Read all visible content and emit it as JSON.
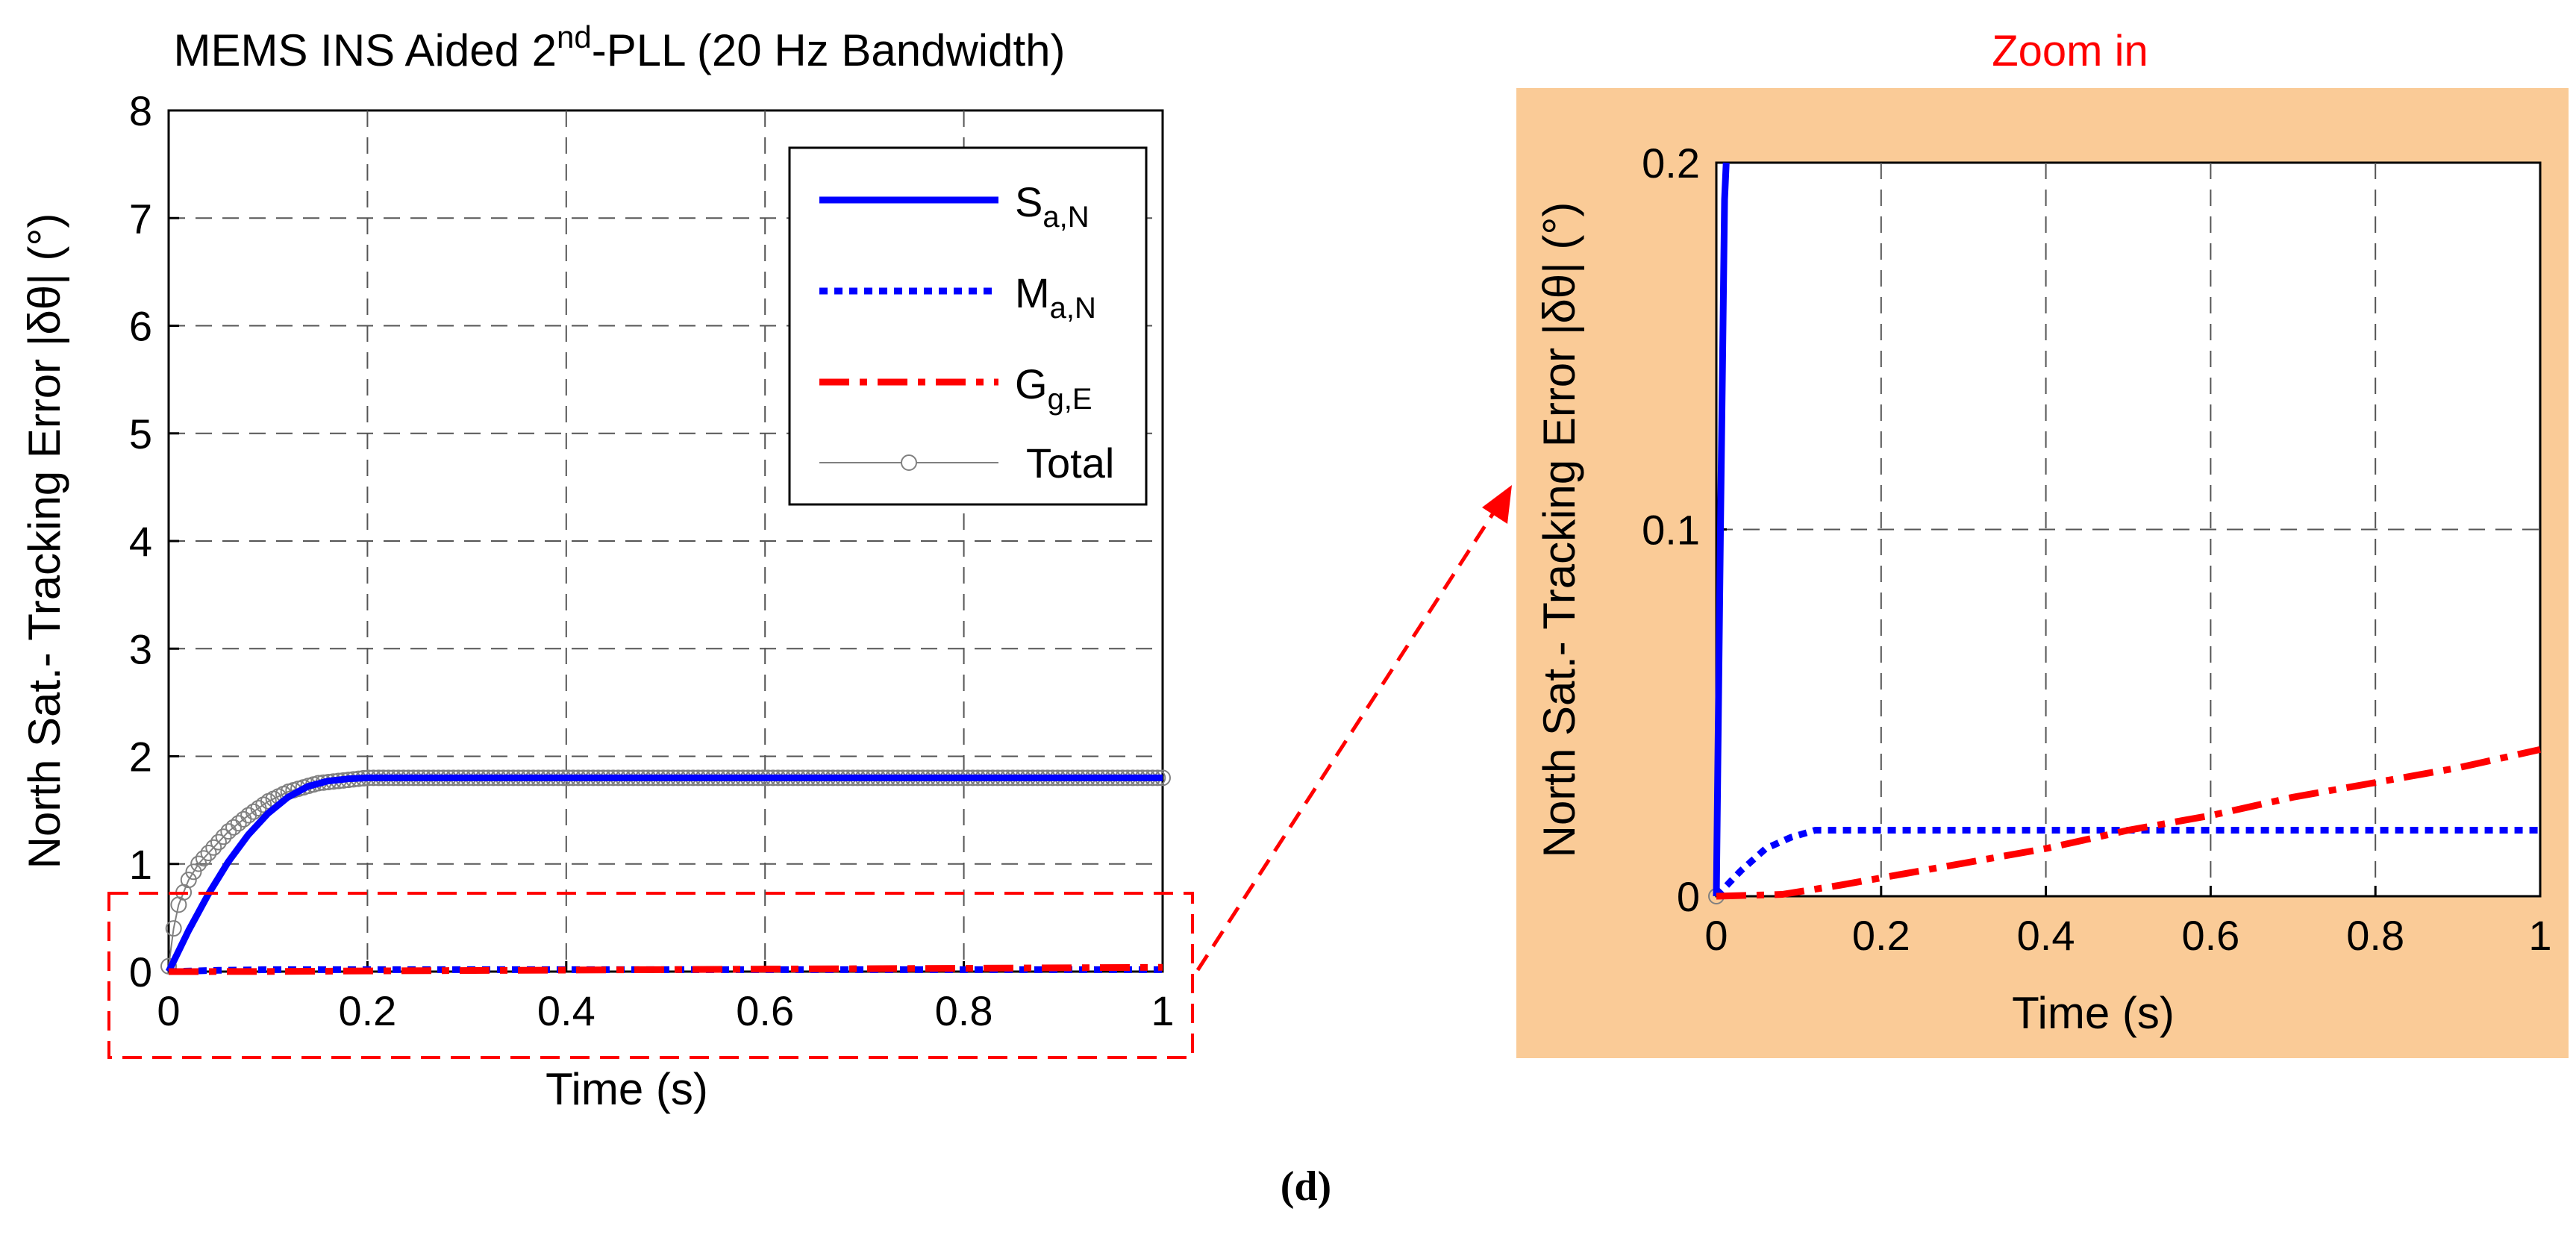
{
  "caption": "(d)",
  "zoom_label": "Zoom in",
  "colors": {
    "s_series": "#0000ff",
    "m_series": "#0000ff",
    "g_series": "#ff0000",
    "total_series": "#808080",
    "zoom_panel_bg": "#facb97",
    "highlight_box": "#ff0000"
  },
  "chart_data": [
    {
      "type": "line",
      "title": "MEMS INS Aided 2nd-PLL (20 Hz Bandwidth)",
      "title_parts": {
        "prefix": "MEMS INS Aided 2",
        "superscript": "nd",
        "suffix": "-PLL (20 Hz Bandwidth)"
      },
      "xlabel": "Time (s)",
      "ylabel": "North Sat.- Tracking Error |δθ| (°)",
      "xlim": [
        0,
        1
      ],
      "ylim": [
        0,
        8
      ],
      "xticks": [
        "0",
        "0.2",
        "0.4",
        "0.6",
        "0.8",
        "1"
      ],
      "yticks": [
        "0",
        "1",
        "2",
        "3",
        "4",
        "5",
        "6",
        "7",
        "8"
      ],
      "grid": true,
      "legend_position": "top-right",
      "series": [
        {
          "name": "S_a,N",
          "legend": {
            "main": "S",
            "sub": "a,N"
          },
          "style": "solid",
          "x": [
            0,
            0.02,
            0.04,
            0.06,
            0.08,
            0.1,
            0.12,
            0.14,
            0.16,
            0.18,
            0.2,
            1.0
          ],
          "y": [
            0,
            0.38,
            0.72,
            1.02,
            1.27,
            1.47,
            1.62,
            1.72,
            1.77,
            1.79,
            1.8,
            1.8
          ]
        },
        {
          "name": "M_a,N",
          "legend": {
            "main": "M",
            "sub": "a,N"
          },
          "style": "dotted",
          "x": [
            0,
            0.05,
            0.1,
            0.15,
            1.0
          ],
          "y": [
            0,
            0.012,
            0.018,
            0.018,
            0.018
          ]
        },
        {
          "name": "G_g,E",
          "legend": {
            "main": "G",
            "sub": "g,E"
          },
          "style": "dashdot",
          "x": [
            0,
            0.1,
            0.2,
            0.4,
            0.6,
            0.8,
            1.0
          ],
          "y": [
            0,
            0.001,
            0.006,
            0.014,
            0.023,
            0.031,
            0.04
          ]
        },
        {
          "name": "Total",
          "legend": {
            "main": "Total",
            "sub": ""
          },
          "style": "circles",
          "x": [
            0,
            0.005,
            0.01,
            0.02,
            0.03,
            0.04,
            0.06,
            0.08,
            0.1,
            0.12,
            0.15,
            0.2,
            1.0
          ],
          "y": [
            0.05,
            0.4,
            0.62,
            0.85,
            1.0,
            1.1,
            1.3,
            1.45,
            1.58,
            1.67,
            1.75,
            1.8,
            1.8
          ]
        }
      ]
    },
    {
      "type": "line",
      "title": "",
      "xlabel": "Time (s)",
      "ylabel": "North Sat.- Tracking Error |δθ| (°)",
      "xlim": [
        0,
        1
      ],
      "ylim": [
        0,
        0.2
      ],
      "xticks": [
        "0",
        "0.2",
        "0.4",
        "0.6",
        "0.8",
        "1"
      ],
      "yticks": [
        "0",
        "0.1",
        "0.2"
      ],
      "grid": true,
      "series": [
        {
          "name": "S_a,N",
          "style": "solid",
          "x": [
            0,
            0.005,
            0.01,
            0.012
          ],
          "y": [
            0,
            0.1,
            0.19,
            0.2
          ]
        },
        {
          "name": "M_a,N",
          "style": "dotted",
          "x": [
            0,
            0.03,
            0.06,
            0.09,
            0.12,
            0.2,
            1.0
          ],
          "y": [
            0,
            0.007,
            0.013,
            0.016,
            0.018,
            0.018,
            0.018
          ]
        },
        {
          "name": "G_g,E",
          "style": "dashdot",
          "x": [
            0,
            0.08,
            0.15,
            0.2,
            0.3,
            0.4,
            0.5,
            0.6,
            0.7,
            0.8,
            0.9,
            1.0
          ],
          "y": [
            0,
            0.0005,
            0.003,
            0.005,
            0.009,
            0.013,
            0.018,
            0.022,
            0.027,
            0.031,
            0.035,
            0.04
          ]
        },
        {
          "name": "Total",
          "style": "circles",
          "x": [
            0
          ],
          "y": [
            0
          ]
        }
      ]
    }
  ]
}
